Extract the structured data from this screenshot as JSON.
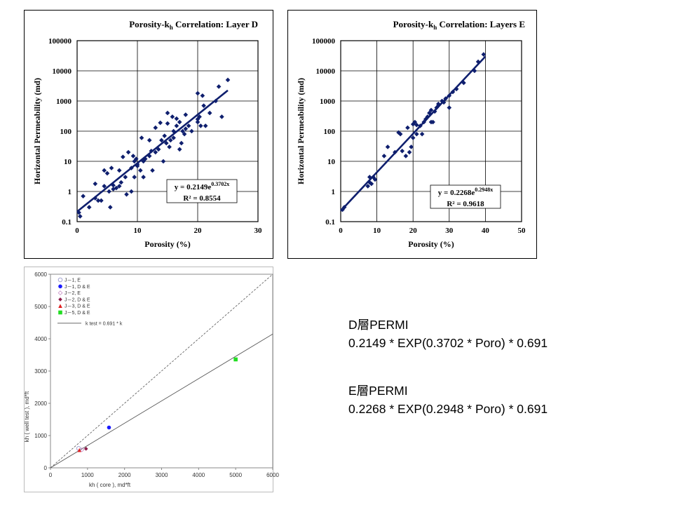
{
  "chart_data": [
    {
      "type": "scatter",
      "title_prefix": "Porosity-k",
      "title_sub": "h",
      "title_suffix": " Correlation:  Layer D",
      "xlabel": "Porosity (%)",
      "ylabel": "Horizontal Permeability (md)",
      "xlim": [
        0,
        30
      ],
      "ylim": [
        0.1,
        100000
      ],
      "yscale": "log",
      "grid": true,
      "x_ticks": [
        "0",
        "10",
        "20",
        "30"
      ],
      "y_ticks": [
        "0.1",
        "1",
        "10",
        "100",
        "1000",
        "10000",
        "100000"
      ],
      "fit": {
        "a": 0.2149,
        "b": 0.3702,
        "x_range": [
          0,
          25
        ]
      },
      "equation_prefix": "y = 0.2149e",
      "equation_exp": "0.3702x",
      "r2": "R² = 0.8554",
      "series": [
        {
          "points": [
            [
              0.3,
              0.2
            ],
            [
              0.5,
              0.15
            ],
            [
              1,
              0.7
            ],
            [
              2,
              0.3
            ],
            [
              3,
              1.8
            ],
            [
              3.5,
              0.5
            ],
            [
              4,
              0.5
            ],
            [
              4.5,
              1.5
            ],
            [
              4.5,
              5
            ],
            [
              5,
              4
            ],
            [
              5.3,
              1
            ],
            [
              5.5,
              0.3
            ],
            [
              5.7,
              6
            ],
            [
              6,
              1.2
            ],
            [
              6.5,
              1.3
            ],
            [
              7,
              1.5
            ],
            [
              7,
              5
            ],
            [
              7.3,
              2
            ],
            [
              7.6,
              14
            ],
            [
              8,
              3
            ],
            [
              8.2,
              0.8
            ],
            [
              8.5,
              20
            ],
            [
              9,
              1
            ],
            [
              9,
              6
            ],
            [
              9.3,
              15
            ],
            [
              9.5,
              3
            ],
            [
              9.8,
              12
            ],
            [
              10,
              7
            ],
            [
              10,
              8
            ],
            [
              10.5,
              5
            ],
            [
              10.7,
              60
            ],
            [
              11,
              3
            ],
            [
              11,
              10
            ],
            [
              11.3,
              12
            ],
            [
              12,
              15
            ],
            [
              12,
              50
            ],
            [
              12.3,
              22
            ],
            [
              12.5,
              5
            ],
            [
              13,
              20
            ],
            [
              13,
              130
            ],
            [
              13.5,
              25
            ],
            [
              14,
              50
            ],
            [
              14.3,
              10
            ],
            [
              14.5,
              70
            ],
            [
              14.8,
              40
            ],
            [
              15,
              180
            ],
            [
              15,
              400
            ],
            [
              15.3,
              30
            ],
            [
              15.5,
              50
            ],
            [
              15.8,
              300
            ],
            [
              16,
              60
            ],
            [
              16,
              100
            ],
            [
              16.5,
              150
            ],
            [
              17,
              200
            ],
            [
              17,
              25
            ],
            [
              17.3,
              40
            ],
            [
              17.5,
              100
            ],
            [
              17.8,
              80
            ],
            [
              18,
              120
            ],
            [
              18,
              350
            ],
            [
              18.5,
              150
            ],
            [
              19,
              100
            ],
            [
              20,
              200
            ],
            [
              20,
              1800
            ],
            [
              20.3,
              300
            ],
            [
              20.5,
              150
            ],
            [
              20.8,
              1500
            ],
            [
              21,
              700
            ],
            [
              21.3,
              150
            ],
            [
              22,
              400
            ],
            [
              23,
              1000
            ],
            [
              23.5,
              3000
            ],
            [
              24,
              300
            ],
            [
              25,
              5000
            ],
            [
              20,
              250
            ],
            [
              16.5,
              260
            ],
            [
              13.8,
              190
            ],
            [
              9.5,
              10
            ],
            [
              6,
              1.6
            ],
            [
              3,
              0.6
            ]
          ]
        }
      ]
    },
    {
      "type": "scatter",
      "title_prefix": "Porosity-k",
      "title_sub": "h",
      "title_suffix": " Correlation:  Layers E",
      "xlabel": "Porosity (%)",
      "ylabel": "Horizontal Permeability (md)",
      "xlim": [
        0,
        50
      ],
      "ylim": [
        0.1,
        100000
      ],
      "yscale": "log",
      "grid": true,
      "x_ticks": [
        "0",
        "10",
        "20",
        "30",
        "40",
        "50"
      ],
      "y_ticks": [
        "0.1",
        "1",
        "10",
        "100",
        "1000",
        "10000",
        "100000"
      ],
      "fit": {
        "a": 0.2268,
        "b": 0.2948,
        "x_range": [
          0,
          40
        ]
      },
      "equation_prefix": "y = 0.2268e",
      "equation_exp": "0.2948x",
      "r2": "R² = 0.9618",
      "series": [
        {
          "points": [
            [
              0.5,
              0.25
            ],
            [
              1,
              0.3
            ],
            [
              7.5,
              1.5
            ],
            [
              8,
              2
            ],
            [
              8,
              3
            ],
            [
              8.5,
              1.8
            ],
            [
              9,
              3
            ],
            [
              9.5,
              2.5
            ],
            [
              12,
              15
            ],
            [
              13,
              30
            ],
            [
              15,
              20
            ],
            [
              16,
              90
            ],
            [
              16.5,
              80
            ],
            [
              17,
              22
            ],
            [
              18,
              15
            ],
            [
              18.5,
              130
            ],
            [
              19,
              20
            ],
            [
              19.5,
              30
            ],
            [
              20,
              60
            ],
            [
              20.5,
              200
            ],
            [
              21,
              80
            ],
            [
              21,
              160
            ],
            [
              22,
              150
            ],
            [
              22.5,
              80
            ],
            [
              23,
              200
            ],
            [
              23.5,
              250
            ],
            [
              24,
              300
            ],
            [
              24.5,
              400
            ],
            [
              25,
              200
            ],
            [
              25,
              500
            ],
            [
              25.5,
              200
            ],
            [
              26,
              450
            ],
            [
              26.5,
              600
            ],
            [
              27,
              800
            ],
            [
              28,
              1000
            ],
            [
              28.5,
              900
            ],
            [
              29,
              1200
            ],
            [
              30,
              1500
            ],
            [
              30,
              600
            ],
            [
              31,
              2000
            ],
            [
              32,
              2500
            ],
            [
              34,
              4000
            ],
            [
              37,
              10000
            ],
            [
              38,
              20000
            ],
            [
              39.5,
              35000
            ],
            [
              20,
              170
            ],
            [
              27,
              700
            ]
          ]
        }
      ]
    },
    {
      "type": "scatter",
      "xlabel": "kh ( core ), md*ft",
      "ylabel": "kh ( well test ), md*ft",
      "ylabel_sub": "h",
      "xlim": [
        0,
        6000
      ],
      "ylim": [
        0,
        6000
      ],
      "x_ticks": [
        "0",
        "1000",
        "2000",
        "3000",
        "4000",
        "5000",
        "6000"
      ],
      "y_ticks": [
        "0",
        "1000",
        "2000",
        "3000",
        "4000",
        "5000",
        "6000"
      ],
      "grid": false,
      "legend_position": "top-left",
      "reference_line": {
        "slope": 1,
        "style": "dashed"
      },
      "fit_line": {
        "slope": 0.691,
        "name": "k test = 0.691 * k"
      },
      "series": [
        {
          "name": "J－1, E",
          "marker": "circle-open",
          "color": "#9999cc",
          "points": [
            [
              760,
              600
            ]
          ]
        },
        {
          "name": "J－1, D & E",
          "marker": "circle",
          "color": "#1a1aff",
          "points": [
            [
              1580,
              1250
            ]
          ]
        },
        {
          "name": "J－2, E",
          "marker": "diamond-open",
          "color": "#cc99cc",
          "points": [
            [
              850,
              560
            ]
          ]
        },
        {
          "name": "J－2, D & E",
          "marker": "diamond",
          "color": "#8b1a4a",
          "points": [
            [
              960,
              590
            ]
          ]
        },
        {
          "name": "J－3, D & E",
          "marker": "triangle",
          "color": "#e02020",
          "points": [
            [
              780,
              550
            ]
          ]
        },
        {
          "name": "J－5, D & E",
          "marker": "square",
          "color": "#22dd22",
          "points": [
            [
              5000,
              3360
            ]
          ]
        }
      ]
    }
  ],
  "formulas": {
    "d_title": "D層PERMI",
    "d_expr": "0.2149 * EXP(0.3702 * Poro) * 0.691",
    "e_title": "E層PERMI",
    "e_expr": "0.2268 * EXP(0.2948 * Poro) * 0.691"
  }
}
